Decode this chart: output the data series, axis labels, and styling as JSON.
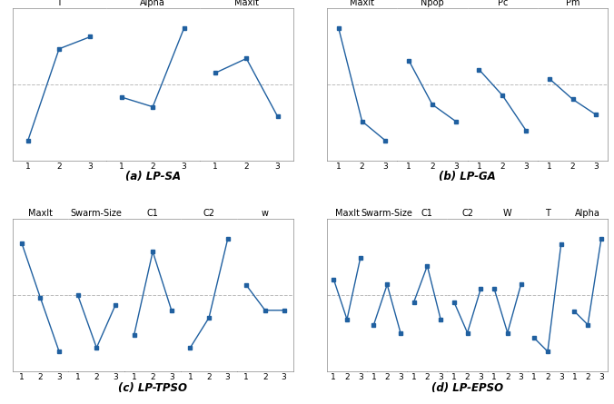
{
  "lp_sa": {
    "title": "(a) LP-SA",
    "params": [
      "T",
      "Alpha",
      "MaxIt"
    ],
    "values": [
      [
        0.02,
        0.78,
        0.88
      ],
      [
        0.38,
        0.3,
        0.95
      ],
      [
        0.58,
        0.7,
        0.22
      ]
    ]
  },
  "lp_ga": {
    "title": "(b) LP-GA",
    "params": [
      "MaxIt",
      "Npop",
      "Pc",
      "Pm"
    ],
    "values": [
      [
        0.97,
        0.25,
        0.1
      ],
      [
        0.72,
        0.38,
        0.25
      ],
      [
        0.65,
        0.45,
        0.18
      ],
      [
        0.58,
        0.42,
        0.3
      ]
    ]
  },
  "lp_tpso": {
    "title": "(c) LP-TPSO",
    "params": [
      "MaxIt",
      "Swarm-Size",
      "C1",
      "C2",
      "w"
    ],
    "values": [
      [
        0.92,
        0.48,
        0.05
      ],
      [
        0.5,
        0.08,
        0.42
      ],
      [
        0.18,
        0.85,
        0.38
      ],
      [
        0.08,
        0.32,
        0.95
      ],
      [
        0.58,
        0.38,
        0.38
      ]
    ]
  },
  "lp_epso": {
    "title": "(d) LP-EPSO",
    "params": [
      "MaxIt",
      "Swarm-Size",
      "C1",
      "C2",
      "W",
      "T",
      "Alpha"
    ],
    "values": [
      [
        0.62,
        0.32,
        0.78
      ],
      [
        0.28,
        0.58,
        0.22
      ],
      [
        0.45,
        0.72,
        0.32
      ],
      [
        0.45,
        0.22,
        0.55
      ],
      [
        0.55,
        0.22,
        0.58
      ],
      [
        0.18,
        0.08,
        0.88
      ],
      [
        0.38,
        0.28,
        0.92
      ]
    ]
  },
  "line_color": "#2060a0",
  "marker": "s",
  "markersize": 3.5,
  "linewidth": 1.0,
  "bg_color": "#ffffff",
  "dashed_color": "#bbbbbb",
  "title_fontsize": 8.5,
  "tick_fontsize": 6.5,
  "param_fontsize": 7.0
}
